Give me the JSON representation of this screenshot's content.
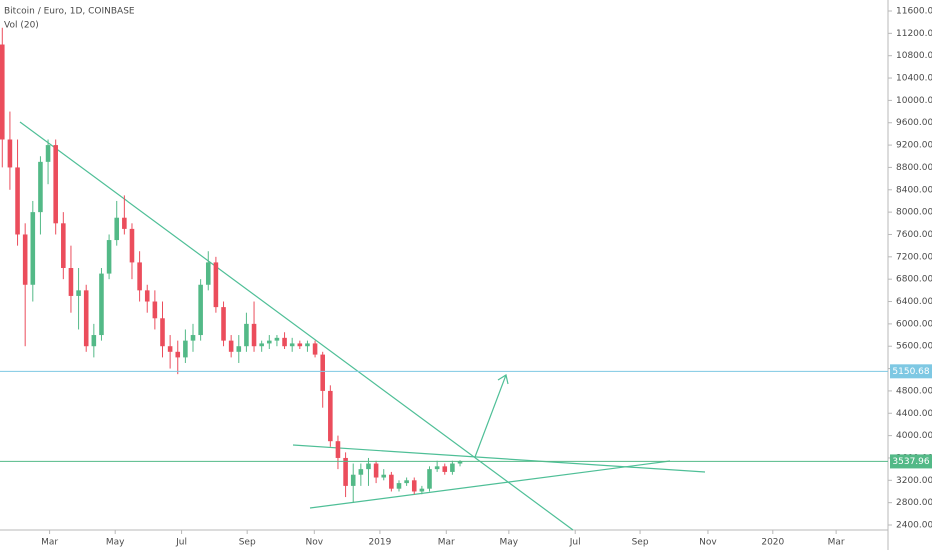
{
  "chart_data": {
    "type": "candlestick",
    "title": "Bitcoin / Euro, 1D, COINBASE",
    "indicator": "Vol (20)",
    "up_color": "#53b987",
    "down_color": "#eb4d5c",
    "x": [
      0,
      1,
      2,
      3,
      4,
      5,
      6,
      7,
      8,
      9,
      10,
      11,
      12,
      13,
      14,
      15,
      16,
      17,
      18,
      19,
      20,
      21,
      22,
      23,
      24,
      25,
      26,
      27,
      28,
      29,
      30,
      31,
      32,
      33,
      34,
      35,
      36,
      37,
      38,
      39,
      40,
      41,
      42,
      43,
      44,
      45,
      46,
      47,
      48,
      49,
      50,
      51,
      52,
      53,
      54,
      55,
      56,
      57,
      58,
      59,
      60
    ],
    "open": [
      11000,
      9300,
      8800,
      7600,
      6700,
      8000,
      8900,
      9200,
      7800,
      7000,
      6500,
      6600,
      5600,
      5800,
      6900,
      7500,
      7900,
      7700,
      7100,
      6600,
      6400,
      6100,
      5600,
      5500,
      5400,
      5700,
      5800,
      6700,
      7100,
      6300,
      5700,
      5500,
      5600,
      6000,
      5600,
      5650,
      5700,
      5750,
      5600,
      5650,
      5600,
      5650,
      5450,
      4800,
      3900,
      3600,
      3100,
      3300,
      3400,
      3500,
      3250,
      3300,
      3050,
      3150,
      3200,
      3000,
      3050,
      3400,
      3450,
      3350,
      3500
    ],
    "high": [
      11300,
      9800,
      9300,
      7800,
      8200,
      9000,
      9300,
      9300,
      8000,
      7400,
      7000,
      6700,
      6000,
      7000,
      7600,
      8200,
      8300,
      7800,
      7300,
      6700,
      6600,
      6400,
      5800,
      5700,
      5900,
      6000,
      6800,
      7300,
      7200,
      6400,
      5800,
      5800,
      6200,
      6400,
      5700,
      5800,
      5800,
      5850,
      5750,
      5700,
      5700,
      5700,
      5500,
      4900,
      4000,
      3700,
      3500,
      3500,
      3600,
      3550,
      3400,
      3350,
      3200,
      3250,
      3250,
      3100,
      3450,
      3550,
      3500,
      3550,
      3560
    ],
    "low": [
      8800,
      8400,
      7400,
      5600,
      6400,
      7600,
      8500,
      7600,
      6800,
      6200,
      5900,
      5500,
      5400,
      5700,
      6800,
      7400,
      7600,
      6800,
      6400,
      6200,
      5900,
      5400,
      5200,
      5100,
      5300,
      5500,
      5700,
      6600,
      6200,
      5600,
      5400,
      5300,
      5500,
      5500,
      5500,
      5550,
      5600,
      5550,
      5500,
      5550,
      5500,
      5400,
      4500,
      3800,
      3400,
      2900,
      2800,
      3100,
      3100,
      3150,
      3200,
      3000,
      3000,
      3100,
      2950,
      2950,
      3000,
      3350,
      3300,
      3300,
      3450
    ],
    "close": [
      9300,
      8800,
      7600,
      6700,
      8000,
      8900,
      9200,
      7800,
      7000,
      6500,
      6600,
      5600,
      5800,
      6900,
      7500,
      7900,
      7700,
      7100,
      6600,
      6400,
      6100,
      5600,
      5500,
      5400,
      5700,
      5800,
      6700,
      7100,
      6300,
      5700,
      5500,
      5600,
      6000,
      5600,
      5650,
      5700,
      5750,
      5600,
      5650,
      5600,
      5650,
      5450,
      4800,
      3900,
      3600,
      3100,
      3300,
      3400,
      3500,
      3250,
      3300,
      3050,
      3150,
      3200,
      3000,
      3050,
      3400,
      3450,
      3350,
      3500,
      3537.96
    ],
    "xlim": [
      -0.3,
      116.1
    ],
    "xticks": [
      {
        "value": 6.2,
        "label": "Mar"
      },
      {
        "value": 14.8,
        "label": "May"
      },
      {
        "value": 23.5,
        "label": "Jul"
      },
      {
        "value": 32.1,
        "label": "Sep"
      },
      {
        "value": 40.9,
        "label": "Nov"
      },
      {
        "value": 49.5,
        "label": "2019"
      },
      {
        "value": 58.2,
        "label": "Mar"
      },
      {
        "value": 66.4,
        "label": "May"
      },
      {
        "value": 75.1,
        "label": "Jul"
      },
      {
        "value": 83.6,
        "label": "Sep"
      },
      {
        "value": 92.5,
        "label": "Nov"
      },
      {
        "value": 101,
        "label": "2020"
      },
      {
        "value": 109.3,
        "label": "Mar"
      }
    ],
    "ylim": [
      2400,
      11600
    ],
    "yticks": [
      {
        "value": 2400,
        "label": "2400.00"
      },
      {
        "value": 2800,
        "label": "2800.00"
      },
      {
        "value": 3200,
        "label": "3200.00"
      },
      {
        "value": 3600,
        "label": "3600.00"
      },
      {
        "value": 4000,
        "label": "4000.00"
      },
      {
        "value": 4400,
        "label": "4400.00"
      },
      {
        "value": 4800,
        "label": "4800.00"
      },
      {
        "value": 5200,
        "label": "5200.00"
      },
      {
        "value": 5600,
        "label": "5600.00"
      },
      {
        "value": 6000,
        "label": "6000.00"
      },
      {
        "value": 6400,
        "label": "6400.00"
      },
      {
        "value": 6800,
        "label": "6800.00"
      },
      {
        "value": 7200,
        "label": "7200.00"
      },
      {
        "value": 7600,
        "label": "7600.00"
      },
      {
        "value": 8000,
        "label": "8000.00"
      },
      {
        "value": 8400,
        "label": "8400.00"
      },
      {
        "value": 8800,
        "label": "8800.00"
      },
      {
        "value": 9200,
        "label": "9200.00"
      },
      {
        "value": 9600,
        "label": "9600.00"
      },
      {
        "value": 10000,
        "label": "10000.00"
      },
      {
        "value": 10400,
        "label": "10400.00"
      },
      {
        "value": 10800,
        "label": "10800.00"
      },
      {
        "value": 11200,
        "label": "11200.00"
      },
      {
        "value": 11600,
        "label": "11600.00"
      }
    ],
    "price_lines": [
      {
        "value": 5150.68,
        "color": "#7ec8e3"
      },
      {
        "value": 3537.96,
        "color": "#53b987"
      }
    ]
  }
}
